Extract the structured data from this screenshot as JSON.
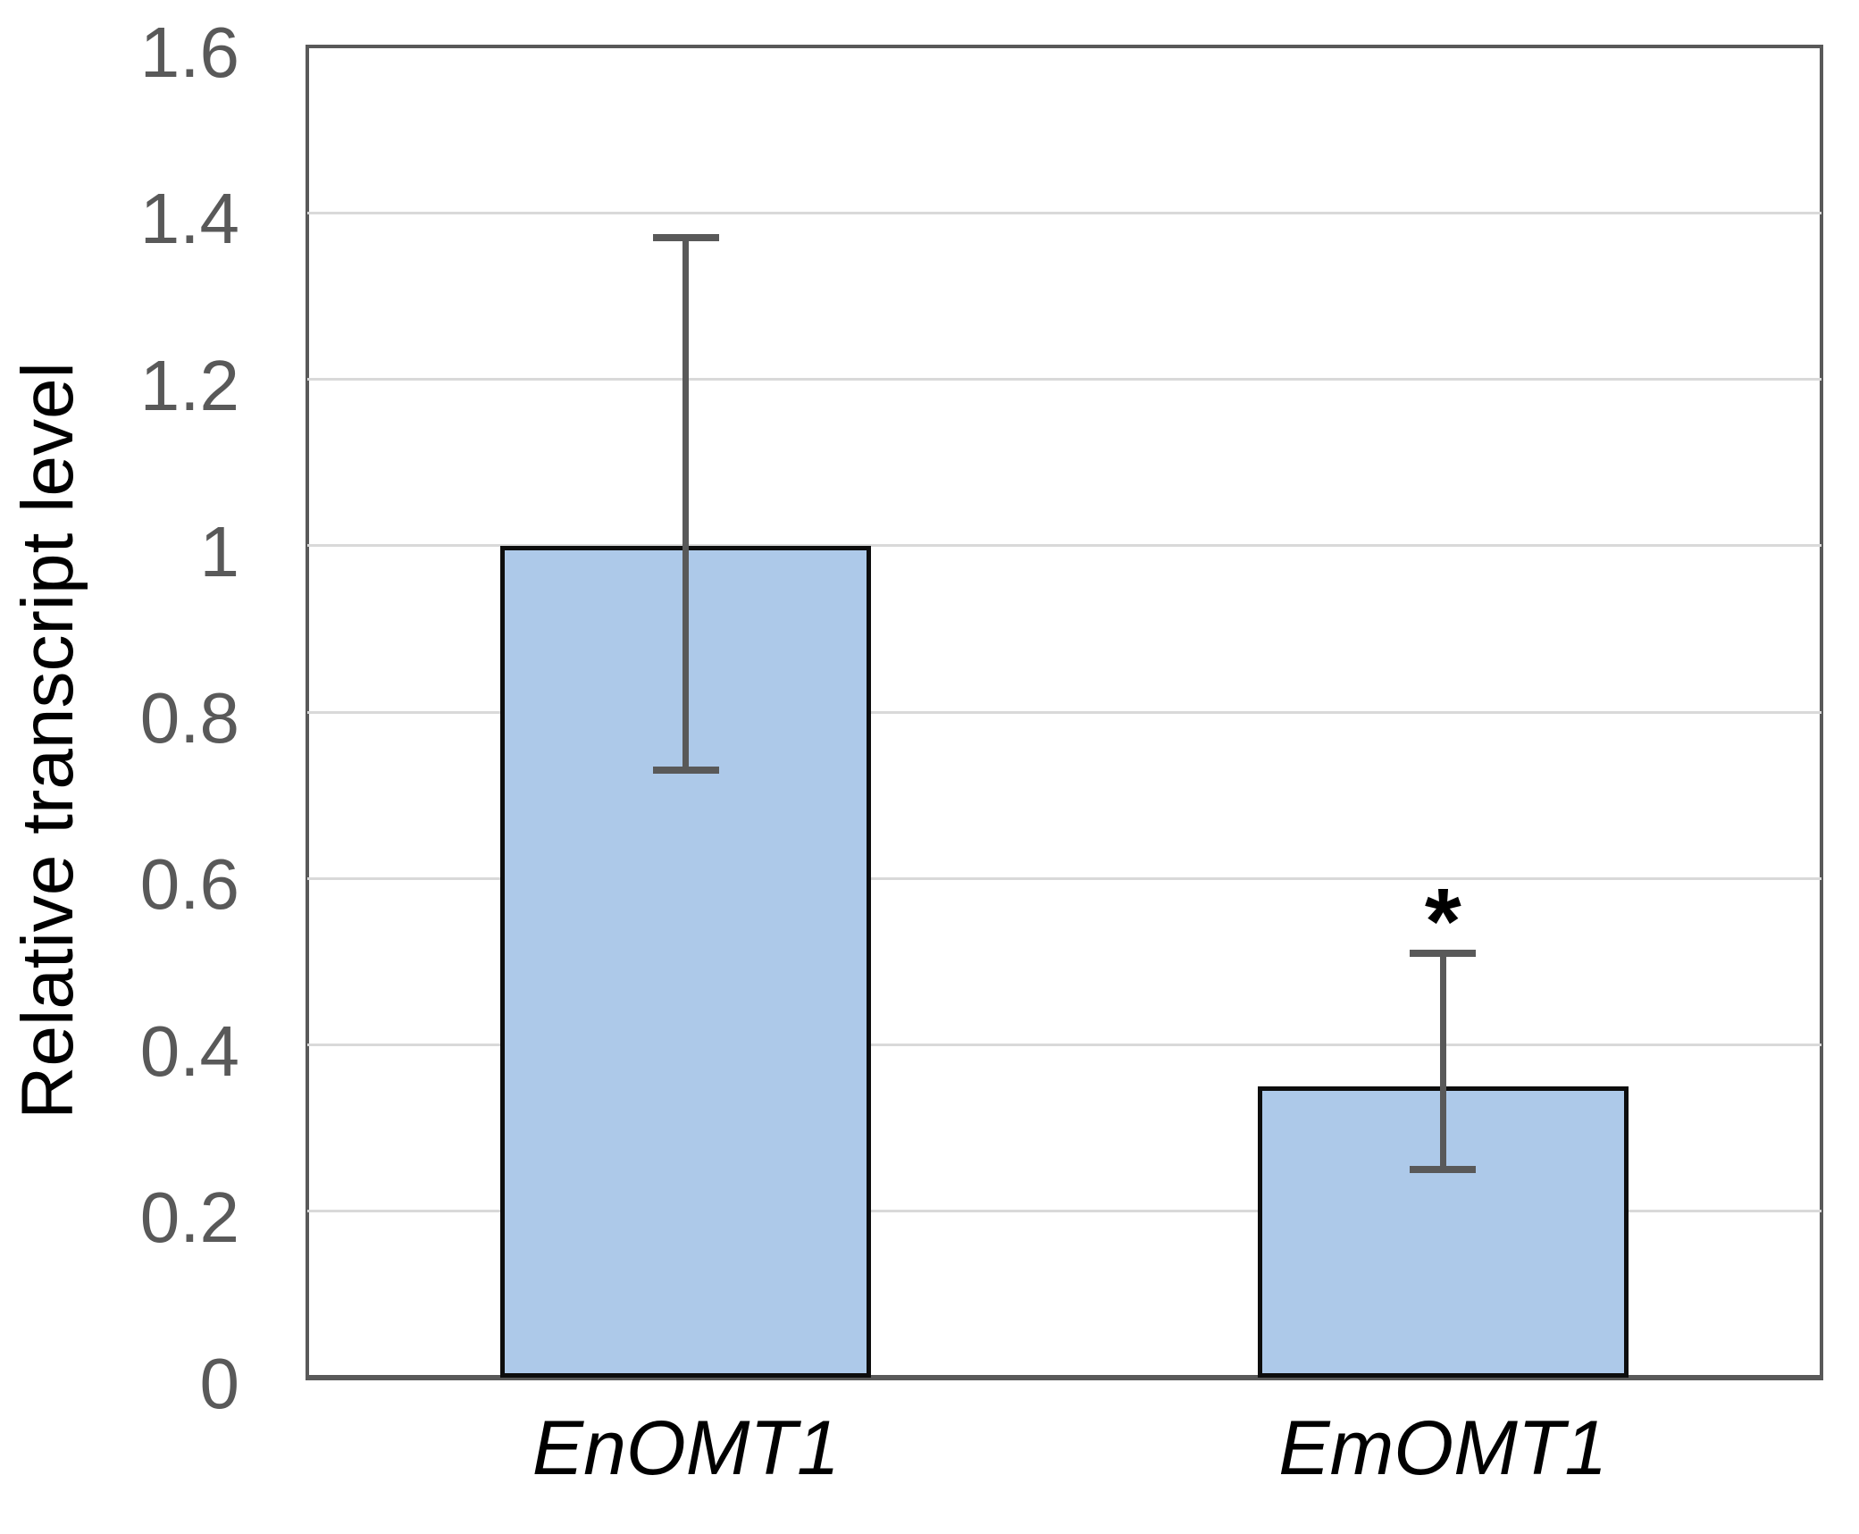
{
  "figure": {
    "kind": "scientific-bar-chart"
  },
  "chart_data": {
    "type": "bar",
    "title": "",
    "xlabel": "",
    "ylabel": "Relative transcript level",
    "categories": [
      "EnOMT1",
      "EmOMT1"
    ],
    "values": [
      1.0,
      0.35
    ],
    "error_bars": {
      "low": [
        0.73,
        0.25
      ],
      "high": [
        1.37,
        0.51
      ]
    },
    "annotations": [
      {
        "category": "EmOMT1",
        "text": "*",
        "y_value": 0.57
      }
    ],
    "ylim": [
      0,
      1.6
    ],
    "yticks": [
      "0",
      "0.2",
      "0.4",
      "0.6",
      "0.8",
      "1",
      "1.2",
      "1.4",
      "1.6"
    ],
    "grid": "horizontal",
    "legend_position": "none",
    "category_label_style": "italic",
    "styles": {
      "background": "#ffffff",
      "bar_fill": "#adc9e9",
      "bar_border": "#0d0d0d",
      "error_bar_color": "#595959",
      "gridline_color": "#d9d9d9",
      "axis_line_color": "#595959",
      "tick_label_color": "#595959",
      "category_label_color": "#000000",
      "axis_title_color": "#000000",
      "annotation_color": "#000000"
    }
  }
}
